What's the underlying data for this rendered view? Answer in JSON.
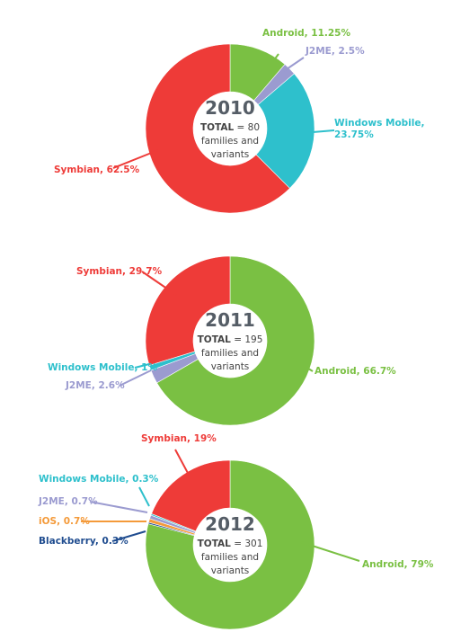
{
  "colors": {
    "android": "#7ac043",
    "j2me": "#9b9bd0",
    "windows_mobile": "#2ec0cc",
    "symbian": "#ee3b38",
    "ios": "#f49a3a",
    "blackberry": "#1f4c8f",
    "center_text": "#444444",
    "year_text": "#555d66"
  },
  "chart_data": [
    {
      "type": "pie",
      "style": "donut",
      "center": {
        "year": "2010",
        "total_label": "TOTAL",
        "total_sep": " = ",
        "total_value": "80",
        "line2": "families and",
        "line3": "variants"
      },
      "slices": [
        {
          "key": "android",
          "name": "Android",
          "value": 11.25,
          "label": "Android, 11.25%",
          "label_side": "right"
        },
        {
          "key": "j2me",
          "name": "J2ME",
          "value": 2.5,
          "label": "J2ME, 2.5%",
          "label_side": "right"
        },
        {
          "key": "windows_mobile",
          "name": "Windows Mobile",
          "value": 23.75,
          "label_lines": [
            "Windows Mobile,",
            "23.75%"
          ],
          "label_side": "right"
        },
        {
          "key": "symbian",
          "name": "Symbian",
          "value": 62.5,
          "label": "Symbian, 62.5%",
          "label_side": "left"
        }
      ]
    },
    {
      "type": "pie",
      "style": "donut",
      "center": {
        "year": "2011",
        "total_label": "TOTAL",
        "total_sep": " = ",
        "total_value": "195",
        "line2": "families and",
        "line3": "variants"
      },
      "slices": [
        {
          "key": "android",
          "name": "Android",
          "value": 66.7,
          "label": "Android, 66.7%",
          "label_side": "right"
        },
        {
          "key": "j2me",
          "name": "J2ME",
          "value": 2.6,
          "label": "J2ME, 2.6%",
          "label_side": "left"
        },
        {
          "key": "windows_mobile",
          "name": "Windows Mobile",
          "value": 1,
          "label": "Windows Mobile, 1%",
          "label_side": "left"
        },
        {
          "key": "symbian",
          "name": "Symbian",
          "value": 29.7,
          "label": "Symbian, 29.7%",
          "label_side": "left"
        }
      ]
    },
    {
      "type": "pie",
      "style": "donut",
      "center": {
        "year": "2012",
        "total_label": "TOTAL",
        "total_sep": " = ",
        "total_value": "301",
        "line2": "families and",
        "line3": "variants"
      },
      "slices": [
        {
          "key": "android",
          "name": "Android",
          "value": 79,
          "label": "Android, 79%",
          "label_side": "right"
        },
        {
          "key": "blackberry",
          "name": "Blackberry",
          "value": 0.3,
          "label": "Blackberry, 0.3%",
          "label_side": "left"
        },
        {
          "key": "ios",
          "name": "iOS",
          "value": 0.7,
          "label": "iOS, 0.7%",
          "label_side": "left"
        },
        {
          "key": "j2me",
          "name": "J2ME",
          "value": 0.7,
          "label": "J2ME, 0.7%",
          "label_side": "left"
        },
        {
          "key": "windows_mobile",
          "name": "Windows Mobile",
          "value": 0.3,
          "label": "Windows Mobile, 0.3%",
          "label_side": "left"
        },
        {
          "key": "symbian",
          "name": "Symbian",
          "value": 19,
          "label": "Symbian, 19%",
          "label_side": "left"
        }
      ]
    }
  ]
}
